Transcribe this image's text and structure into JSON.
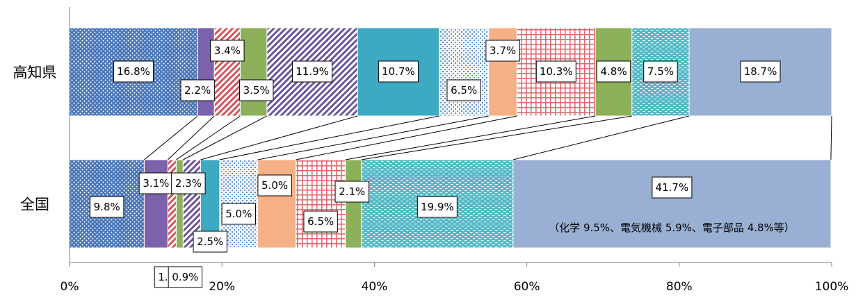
{
  "chart_data": {
    "type": "bar",
    "orientation": "horizontal",
    "stacked": true,
    "percent": true,
    "categories": [
      "高知県",
      "全国"
    ],
    "xlim": [
      0,
      100
    ],
    "xticks": [
      "0%",
      "20%",
      "40%",
      "60%",
      "80%",
      "100%"
    ],
    "series": [
      {
        "values": [
          16.8,
          9.8
        ],
        "color": "#4a76b8",
        "pattern": "dots"
      },
      {
        "values": [
          2.2,
          3.1
        ],
        "color": "#7b62aa",
        "pattern": "solid"
      },
      {
        "values": [
          3.4,
          1.1
        ],
        "color": "#d9535a",
        "pattern": "diag"
      },
      {
        "values": [
          3.5,
          0.9
        ],
        "color": "#8db05a",
        "pattern": "solid"
      },
      {
        "values": [
          11.9,
          2.3
        ],
        "color": "#6a54a0",
        "pattern": "diag"
      },
      {
        "values": [
          10.7,
          2.5
        ],
        "color": "#3da9c3",
        "pattern": "solid"
      },
      {
        "values": [
          6.5,
          5.0
        ],
        "color": "#5c8fc9",
        "pattern": "check"
      },
      {
        "values": [
          3.7,
          5.0
        ],
        "color": "#f5b085",
        "pattern": "solid"
      },
      {
        "values": [
          10.3,
          6.5
        ],
        "color": "#e06a70",
        "pattern": "grid"
      },
      {
        "values": [
          4.8,
          2.1
        ],
        "color": "#8db05a",
        "pattern": "solid"
      },
      {
        "values": [
          7.5,
          19.9
        ],
        "color": "#52b8c6",
        "pattern": "dash"
      },
      {
        "values": [
          18.7,
          41.7
        ],
        "color": "#99b0d4",
        "pattern": "solid"
      }
    ],
    "labels": [
      [
        "16.8%",
        "2.2%",
        "3.4%",
        "3.5%",
        "11.9%",
        "10.7%",
        "6.5%",
        "3.7%",
        "10.3%",
        "4.8%",
        "7.5%",
        "18.7%"
      ],
      [
        "9.8%",
        "3.1%",
        "1.1%",
        "0.9%",
        "2.3%",
        "2.5%",
        "5.0%",
        "5.0%",
        "6.5%",
        "2.1%",
        "19.9%",
        "41.7%"
      ]
    ],
    "annotation": "（化学 9.5%、電気機械 5.9%、電子部品 4.8%等）"
  }
}
